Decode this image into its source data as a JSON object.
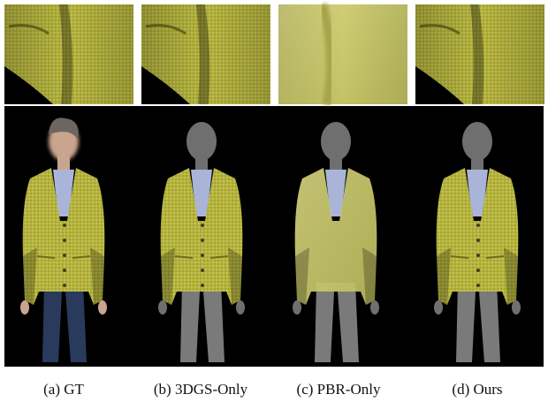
{
  "figure": {
    "captions": [
      "(a) GT",
      "(b) 3DGS-Only",
      "(c) PBR-Only",
      "(d) Ours"
    ]
  }
}
